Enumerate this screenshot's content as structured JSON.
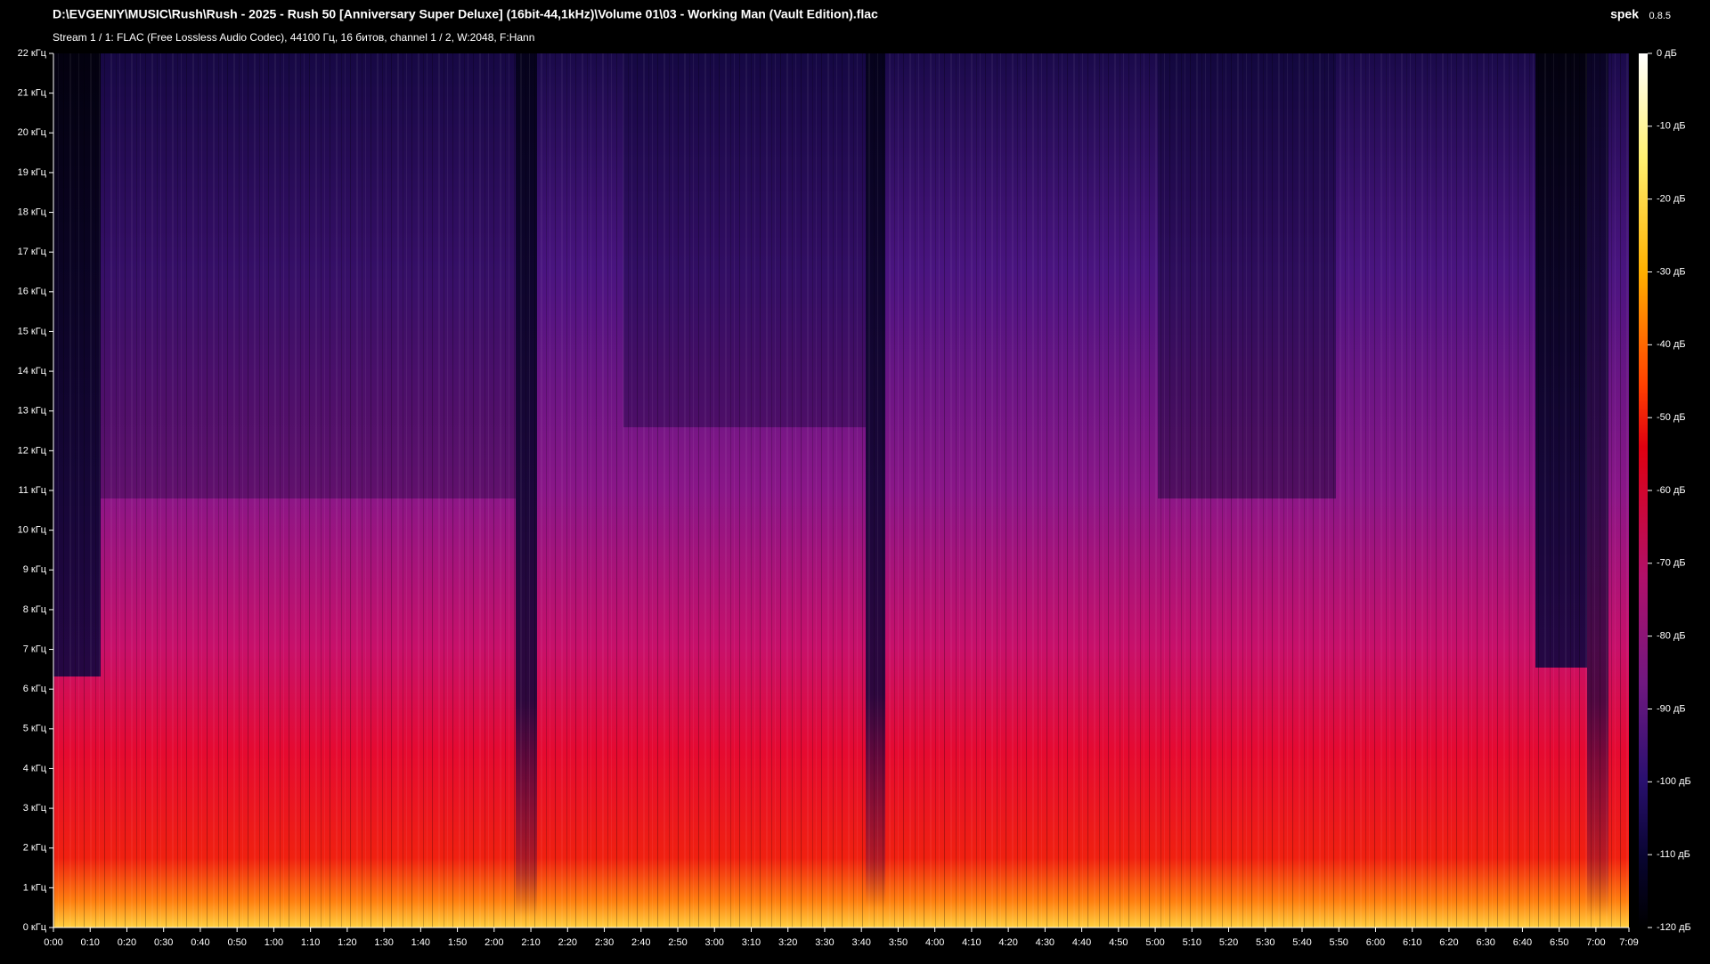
{
  "header": {
    "title": "D:\\EVGENIY\\MUSIC\\Rush\\Rush - 2025 - Rush 50 [Anniversary Super Deluxe] (16bit-44,1kHz)\\Volume 01\\03  - Working Man (Vault Edition).flac",
    "subtitle": "Stream 1 / 1: FLAC (Free Lossless Audio Codec), 44100 Гц, 16 битов, channel 1 / 2, W:2048, F:Hann",
    "app": "spek",
    "version": "0.8.5"
  },
  "frequency_axis": {
    "labels": [
      "22 кГц",
      "21 кГц",
      "20 кГц",
      "19 кГц",
      "18 кГц",
      "17 кГц",
      "16 кГц",
      "15 кГц",
      "14 кГц",
      "13 кГц",
      "12 кГц",
      "11 кГц",
      "10 кГц",
      "9 кГц",
      "8 кГц",
      "7 кГц",
      "6 кГц",
      "5 кГц",
      "4 кГц",
      "3 кГц",
      "2 кГц",
      "1 кГц",
      "0 кГц"
    ]
  },
  "time_axis": {
    "labels": [
      "0:00",
      "0:10",
      "0:20",
      "0:30",
      "0:40",
      "0:50",
      "1:00",
      "1:10",
      "1:20",
      "1:30",
      "1:40",
      "1:50",
      "2:00",
      "2:10",
      "2:20",
      "2:30",
      "2:40",
      "2:50",
      "3:00",
      "3:10",
      "3:20",
      "3:30",
      "3:40",
      "3:50",
      "4:00",
      "4:10",
      "4:20",
      "4:30",
      "4:40",
      "4:50",
      "5:00",
      "5:10",
      "5:20",
      "5:30",
      "5:40",
      "5:50",
      "6:00",
      "6:10",
      "6:20",
      "6:30",
      "6:40",
      "6:50",
      "7:00",
      "7:09"
    ]
  },
  "level_scale": {
    "labels": [
      "0 дБ",
      "-10 дБ",
      "-20 дБ",
      "-30 дБ",
      "-40 дБ",
      "-50 дБ",
      "-60 дБ",
      "-70 дБ",
      "-80 дБ",
      "-90 дБ",
      "-100 дБ",
      "-110 дБ",
      "-120 дБ"
    ]
  }
}
